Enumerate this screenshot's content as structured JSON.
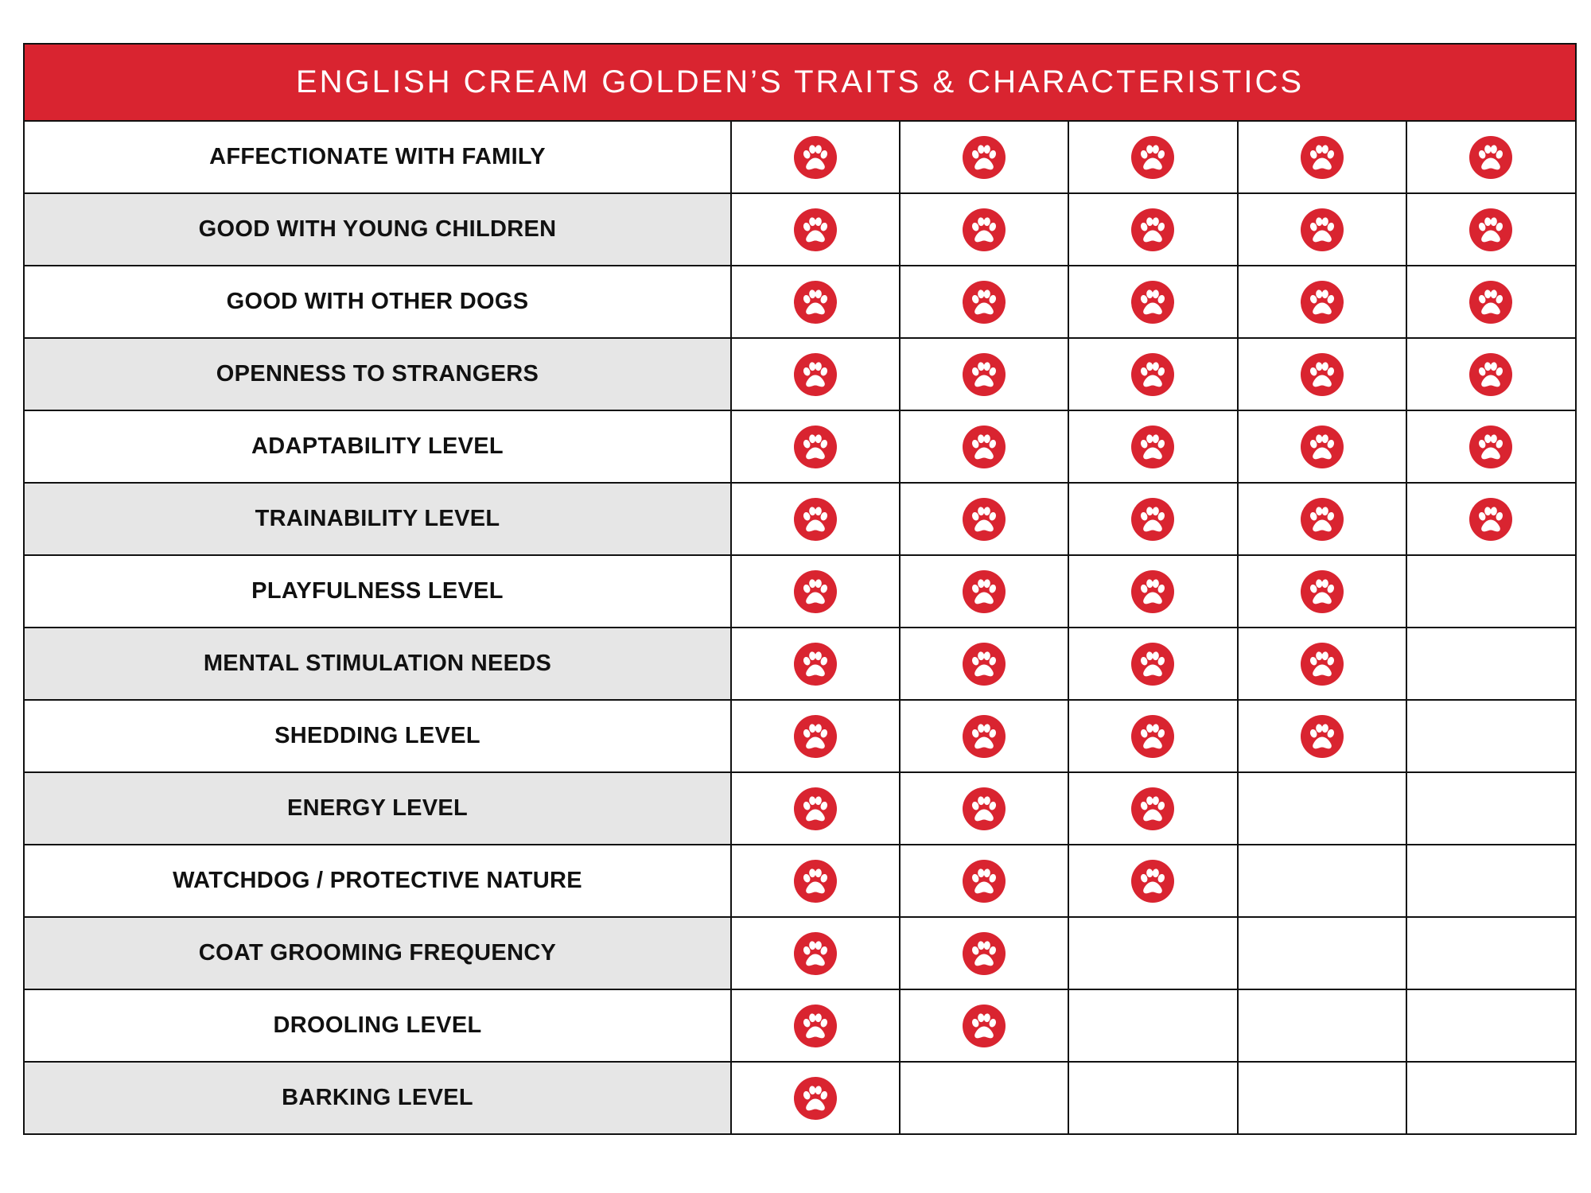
{
  "colors": {
    "accent": "#d92430",
    "alt_row": "#e6e6e6",
    "border": "#111111"
  },
  "title": "ENGLISH CREAM GOLDEN’S TRAITS & CHARACTERISTICS",
  "scale_max": 5,
  "icon": "paw-icon",
  "traits": [
    {
      "label": "AFFECTIONATE WITH FAMILY",
      "rating": 5
    },
    {
      "label": "GOOD WITH YOUNG CHILDREN",
      "rating": 5
    },
    {
      "label": "GOOD WITH OTHER DOGS",
      "rating": 5
    },
    {
      "label": "OPENNESS TO STRANGERS",
      "rating": 5
    },
    {
      "label": "ADAPTABILITY LEVEL",
      "rating": 5
    },
    {
      "label": "TRAINABILITY LEVEL",
      "rating": 5
    },
    {
      "label": "PLAYFULNESS LEVEL",
      "rating": 4
    },
    {
      "label": "MENTAL STIMULATION NEEDS",
      "rating": 4
    },
    {
      "label": "SHEDDING LEVEL",
      "rating": 4
    },
    {
      "label": "ENERGY LEVEL",
      "rating": 3
    },
    {
      "label": "WATCHDOG / PROTECTIVE NATURE",
      "rating": 3
    },
    {
      "label": "COAT GROOMING FREQUENCY",
      "rating": 2
    },
    {
      "label": "DROOLING LEVEL",
      "rating": 2
    },
    {
      "label": "BARKING LEVEL",
      "rating": 1
    }
  ]
}
